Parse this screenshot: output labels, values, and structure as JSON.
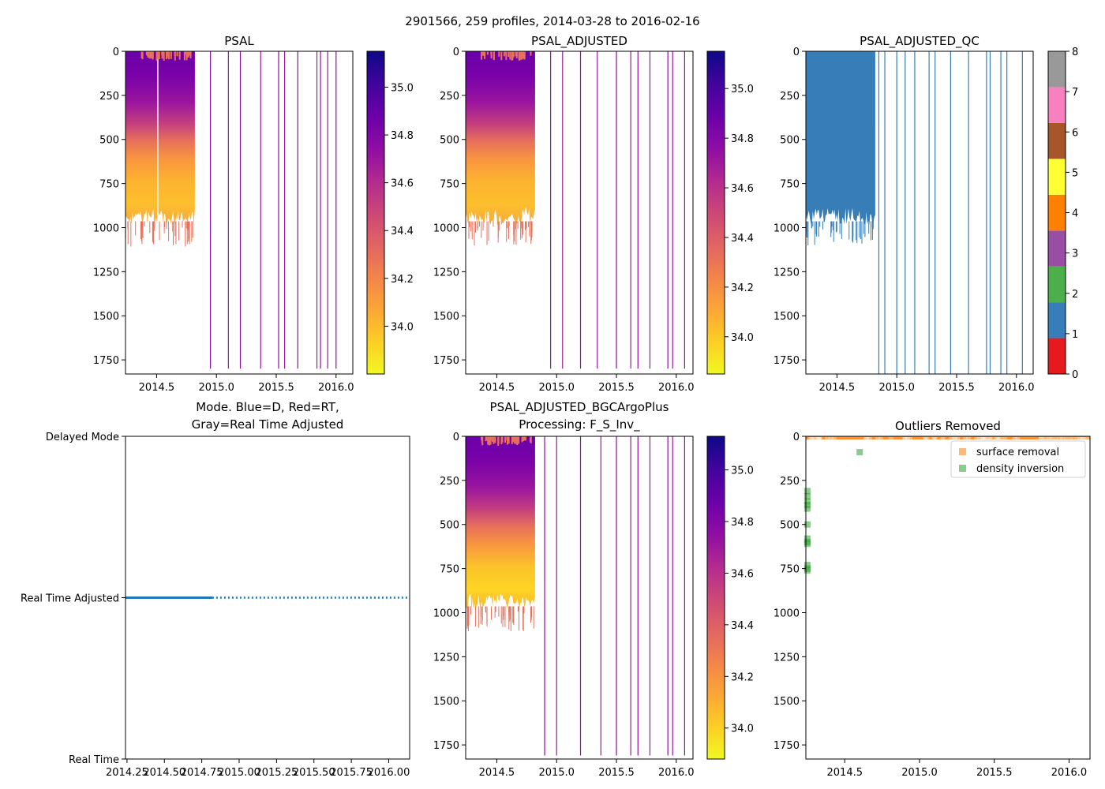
{
  "figure": {
    "suptitle": "2901566, 259 profiles, 2014-03-28 to 2016-02-16"
  },
  "colors": {
    "plasma": [
      "#0d0887",
      "#41049d",
      "#6a00a8",
      "#8f0da4",
      "#b12a90",
      "#cc4778",
      "#e16462",
      "#f2844b",
      "#fca636",
      "#fcce25",
      "#f0f921"
    ],
    "qc": [
      "#e41a1c",
      "#377eb8",
      "#4daf4a",
      "#984ea3",
      "#ff7f00",
      "#ffff33",
      "#a65628",
      "#f781bf",
      "#999999"
    ],
    "mode_line": "#1f77b4",
    "surface_removal": "#ff7f0e",
    "density_inversion": "#2ca02c"
  },
  "chart_data": [
    {
      "id": "psal",
      "type": "heatmap",
      "title": "PSAL",
      "xlim": [
        2014.24,
        2016.14
      ],
      "xticks": [
        2014.5,
        2015.0,
        2015.5,
        2016.0
      ],
      "xtick_labels": [
        "2014.5",
        "2015.0",
        "2015.5",
        "2016.0"
      ],
      "ylim": [
        1830,
        0
      ],
      "yticks": [
        0,
        250,
        500,
        750,
        1000,
        1250,
        1500,
        1750
      ],
      "ytick_labels": [
        "0",
        "250",
        "500",
        "750",
        "1000",
        "1250",
        "1500",
        "1750"
      ],
      "colorbar": {
        "cmap": "plasma",
        "range": [
          33.8,
          35.15
        ],
        "ticks": [
          34.0,
          34.2,
          34.4,
          34.6,
          34.8,
          35.0
        ],
        "tick_labels": [
          "34.0",
          "34.2",
          "34.4",
          "34.6",
          "34.8",
          "35.0"
        ]
      },
      "dense_block": {
        "x": [
          2014.24,
          2014.82
        ],
        "max_depth": 1000,
        "gap_x": 2014.51
      },
      "sparse_profiles": [
        2014.95,
        2015.1,
        2015.2,
        2015.37,
        2015.52,
        2015.57,
        2015.68,
        2015.84,
        2015.87,
        2015.93,
        2016.0
      ],
      "profile_max_depth": 1800
    },
    {
      "id": "psal_adjusted",
      "type": "heatmap",
      "title": "PSAL_ADJUSTED",
      "xlim": [
        2014.24,
        2016.14
      ],
      "xticks": [
        2014.5,
        2015.0,
        2015.5,
        2016.0
      ],
      "xtick_labels": [
        "2014.5",
        "2015.0",
        "2015.5",
        "2016.0"
      ],
      "ylim": [
        1830,
        0
      ],
      "yticks": [
        0,
        250,
        500,
        750,
        1000,
        1250,
        1500,
        1750
      ],
      "ytick_labels": [
        "0",
        "250",
        "500",
        "750",
        "1000",
        "1250",
        "1500",
        "1750"
      ],
      "colorbar": {
        "cmap": "plasma",
        "range": [
          33.85,
          35.15
        ],
        "ticks": [
          34.0,
          34.2,
          34.4,
          34.6,
          34.8,
          35.0
        ],
        "tick_labels": [
          "34.0",
          "34.2",
          "34.4",
          "34.6",
          "34.8",
          "35.0"
        ]
      },
      "dense_block": {
        "x": [
          2014.24,
          2014.82
        ],
        "max_depth": 1000
      },
      "sparse_profiles": [
        2014.95,
        2015.05,
        2015.2,
        2015.34,
        2015.5,
        2015.62,
        2015.68,
        2015.78,
        2015.93,
        2015.97,
        2016.07
      ],
      "profile_max_depth": 1800
    },
    {
      "id": "psal_adjusted_qc",
      "type": "heatmap",
      "title": "PSAL_ADJUSTED_QC",
      "xlim": [
        2014.24,
        2016.14
      ],
      "xticks": [
        2014.5,
        2015.0,
        2015.5,
        2016.0
      ],
      "xtick_labels": [
        "2014.5",
        "2015.0",
        "2015.5",
        "2016.0"
      ],
      "ylim": [
        1830,
        0
      ],
      "yticks": [
        0,
        250,
        500,
        750,
        1000,
        1250,
        1500,
        1750
      ],
      "ytick_labels": [
        "0",
        "250",
        "500",
        "750",
        "1000",
        "1250",
        "1500",
        "1750"
      ],
      "colorbar": {
        "cmap": "qc",
        "range": [
          0,
          8
        ],
        "ticks": [
          0,
          1,
          2,
          3,
          4,
          5,
          6,
          7,
          8
        ],
        "tick_labels": [
          "0",
          "1",
          "2",
          "3",
          "4",
          "5",
          "6",
          "7",
          "8"
        ]
      },
      "qc_value": 1,
      "dense_block": {
        "x": [
          2014.24,
          2014.82
        ],
        "max_depth": 1000
      },
      "sparse_profiles": [
        2014.85,
        2014.9,
        2015.0,
        2015.07,
        2015.15,
        2015.27,
        2015.32,
        2015.45,
        2015.6,
        2015.75,
        2015.78,
        2015.87,
        2015.92,
        2016.05
      ],
      "profile_max_depth": 1830
    },
    {
      "id": "mode",
      "type": "line",
      "title": "Mode. Blue=D, Red=RT,",
      "title2": "Gray=Real Time Adjusted",
      "xlim": [
        2014.24,
        2016.14
      ],
      "xticks": [
        2014.25,
        2014.5,
        2014.75,
        2015.0,
        2015.25,
        2015.5,
        2015.75,
        2016.0
      ],
      "xtick_labels": [
        "2014.25",
        "2014.50",
        "2014.75",
        "2015.00",
        "2015.25",
        "2015.50",
        "2015.75",
        "2016.00"
      ],
      "ylim": [
        0,
        2
      ],
      "yticks": [
        0,
        1,
        2
      ],
      "ytick_labels": [
        "Real Time",
        "Real Time Adjusted",
        "Delayed Mode"
      ],
      "solid_segment": {
        "x": [
          2014.24,
          2014.82
        ],
        "y": 1
      },
      "dotted_segment": {
        "x": [
          2014.82,
          2016.14
        ],
        "y": 1
      }
    },
    {
      "id": "bgc",
      "type": "heatmap",
      "title": "PSAL_ADJUSTED_BGCArgoPlus",
      "title2": "Processing: F_S_Inv_",
      "xlim": [
        2014.24,
        2016.14
      ],
      "xticks": [
        2014.5,
        2015.0,
        2015.5,
        2016.0
      ],
      "xtick_labels": [
        "2014.5",
        "2015.0",
        "2015.5",
        "2016.0"
      ],
      "ylim": [
        1830,
        0
      ],
      "yticks": [
        0,
        250,
        500,
        750,
        1000,
        1250,
        1500,
        1750
      ],
      "ytick_labels": [
        "0",
        "250",
        "500",
        "750",
        "1000",
        "1250",
        "1500",
        "1750"
      ],
      "colorbar": {
        "cmap": "plasma",
        "range": [
          33.88,
          35.13
        ],
        "ticks": [
          34.0,
          34.2,
          34.4,
          34.6,
          34.8,
          35.0
        ],
        "tick_labels": [
          "34.0",
          "34.2",
          "34.4",
          "34.6",
          "34.8",
          "35.0"
        ]
      },
      "dense_block": {
        "x": [
          2014.24,
          2014.82
        ],
        "max_depth": 1000
      },
      "sparse_profiles": [
        2014.9,
        2015.0,
        2015.2,
        2015.37,
        2015.5,
        2015.62,
        2015.68,
        2015.78,
        2015.93,
        2015.97,
        2016.07
      ],
      "profile_max_depth": 1810
    },
    {
      "id": "outliers",
      "type": "scatter",
      "title": "Outliers Removed",
      "xlim": [
        2014.24,
        2016.14
      ],
      "xticks": [
        2014.5,
        2015.0,
        2015.5,
        2016.0
      ],
      "xtick_labels": [
        "2014.5",
        "2015.0",
        "2015.5",
        "2016.0"
      ],
      "ylim": [
        1830,
        0
      ],
      "yticks": [
        0,
        250,
        500,
        750,
        1000,
        1250,
        1500,
        1750
      ],
      "ytick_labels": [
        "0",
        "250",
        "500",
        "750",
        "1000",
        "1250",
        "1500",
        "1750"
      ],
      "legend": {
        "position": "upper right",
        "entries": [
          "surface removal",
          "density inversion"
        ]
      },
      "surface_removal": {
        "x_range": [
          2014.24,
          2016.14
        ],
        "depth_range": [
          0,
          10
        ]
      },
      "density_inversion": {
        "points": [
          {
            "x": 2014.25,
            "depth": 310
          },
          {
            "x": 2014.25,
            "depth": 340
          },
          {
            "x": 2014.25,
            "depth": 370
          },
          {
            "x": 2014.25,
            "depth": 390
          },
          {
            "x": 2014.25,
            "depth": 410
          },
          {
            "x": 2014.25,
            "depth": 500
          },
          {
            "x": 2014.25,
            "depth": 580
          },
          {
            "x": 2014.25,
            "depth": 600
          },
          {
            "x": 2014.25,
            "depth": 610
          },
          {
            "x": 2014.25,
            "depth": 730
          },
          {
            "x": 2014.25,
            "depth": 750
          },
          {
            "x": 2014.25,
            "depth": 760
          },
          {
            "x": 2014.6,
            "depth": 90
          }
        ]
      }
    }
  ]
}
